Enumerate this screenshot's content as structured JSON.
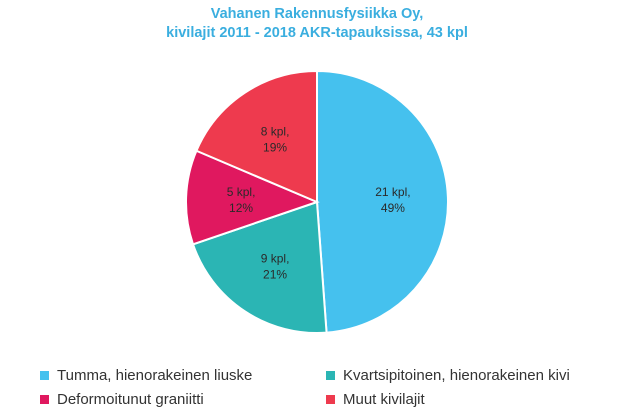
{
  "chart_data": {
    "type": "pie",
    "title_line1": "Vahanen Rakennusfysiikka Oy,",
    "title_line2": "kivilajit 2011 - 2018 AKR-tapauksissa, 43 kpl",
    "slices": [
      {
        "name": "Tumma, hienorakeinen liuske",
        "count": 21,
        "percent": 49,
        "count_label": "21 kpl,",
        "percent_label": "49%",
        "color": "#45c1ee"
      },
      {
        "name": "Kvartsipitoinen, hienorakeinen kivi",
        "count": 9,
        "percent": 21,
        "count_label": "9 kpl,",
        "percent_label": "21%",
        "color": "#2bb5b4"
      },
      {
        "name": "Deformoitunut graniitti",
        "count": 5,
        "percent": 12,
        "count_label": "5 kpl,",
        "percent_label": "12%",
        "color": "#e0185f"
      },
      {
        "name": "Muut kivilajit",
        "count": 8,
        "percent": 19,
        "count_label": "8 kpl,",
        "percent_label": "19%",
        "color": "#ee3a4e"
      }
    ],
    "legend_placement": "bottom"
  }
}
